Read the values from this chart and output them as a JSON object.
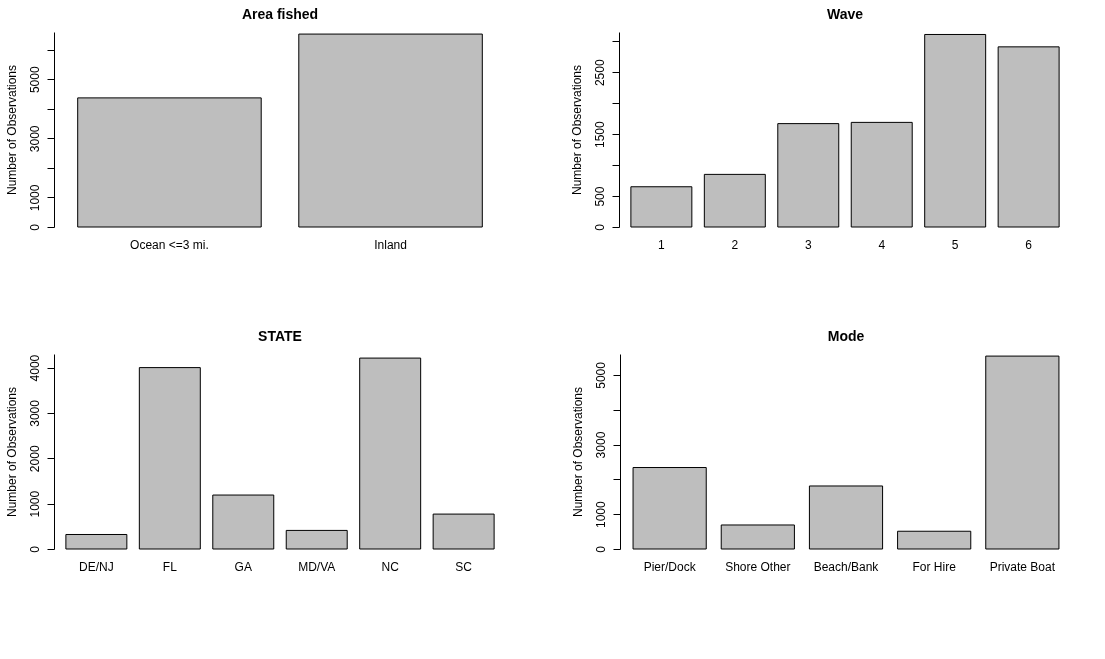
{
  "chart_data": [
    {
      "type": "bar",
      "title": "Area fished",
      "ylabel": "Number of Observations",
      "categories": [
        "Ocean <=3 mi.",
        "Inland"
      ],
      "values": [
        4370,
        6530
      ],
      "color": "#bebebe",
      "ylim": [
        0,
        6600
      ],
      "yticks": [
        0,
        1000,
        {
          "value": 2000,
          "label": null
        },
        3000,
        {
          "value": 4000,
          "label": null
        },
        5000,
        {
          "value": 6000,
          "label": null
        }
      ]
    },
    {
      "type": "bar",
      "title": "Wave",
      "ylabel": "Number of Observations",
      "categories": [
        "1",
        "2",
        "3",
        "4",
        "5",
        "6"
      ],
      "values": [
        650,
        850,
        1670,
        1690,
        3110,
        2910
      ],
      "color": "#bebebe",
      "ylim": [
        0,
        3150
      ],
      "yticks": [
        0,
        500,
        {
          "value": 1000,
          "label": null
        },
        1500,
        {
          "value": 2000,
          "label": null
        },
        2500,
        {
          "value": 3000,
          "label": null
        }
      ]
    },
    {
      "type": "bar",
      "title": "STATE",
      "ylabel": "Number of Observations",
      "categories": [
        "DE/NJ",
        "FL",
        "GA",
        "MD/VA",
        "NC",
        "SC"
      ],
      "values": [
        320,
        4000,
        1190,
        410,
        4210,
        770
      ],
      "color": "#bebebe",
      "ylim": [
        0,
        4300
      ],
      "yticks": [
        0,
        1000,
        2000,
        3000,
        4000
      ]
    },
    {
      "type": "bar",
      "title": "Mode",
      "ylabel": "Number of Observations",
      "categories": [
        "Pier/Dock",
        "Shore Other",
        "Beach/Bank",
        "For Hire",
        "Private Boat"
      ],
      "values": [
        2340,
        690,
        1810,
        510,
        5540
      ],
      "color": "#bebebe",
      "ylim": [
        0,
        5600
      ],
      "yticks": [
        0,
        1000,
        {
          "value": 2000,
          "label": null
        },
        3000,
        {
          "value": 4000,
          "label": null
        },
        5000
      ]
    }
  ]
}
